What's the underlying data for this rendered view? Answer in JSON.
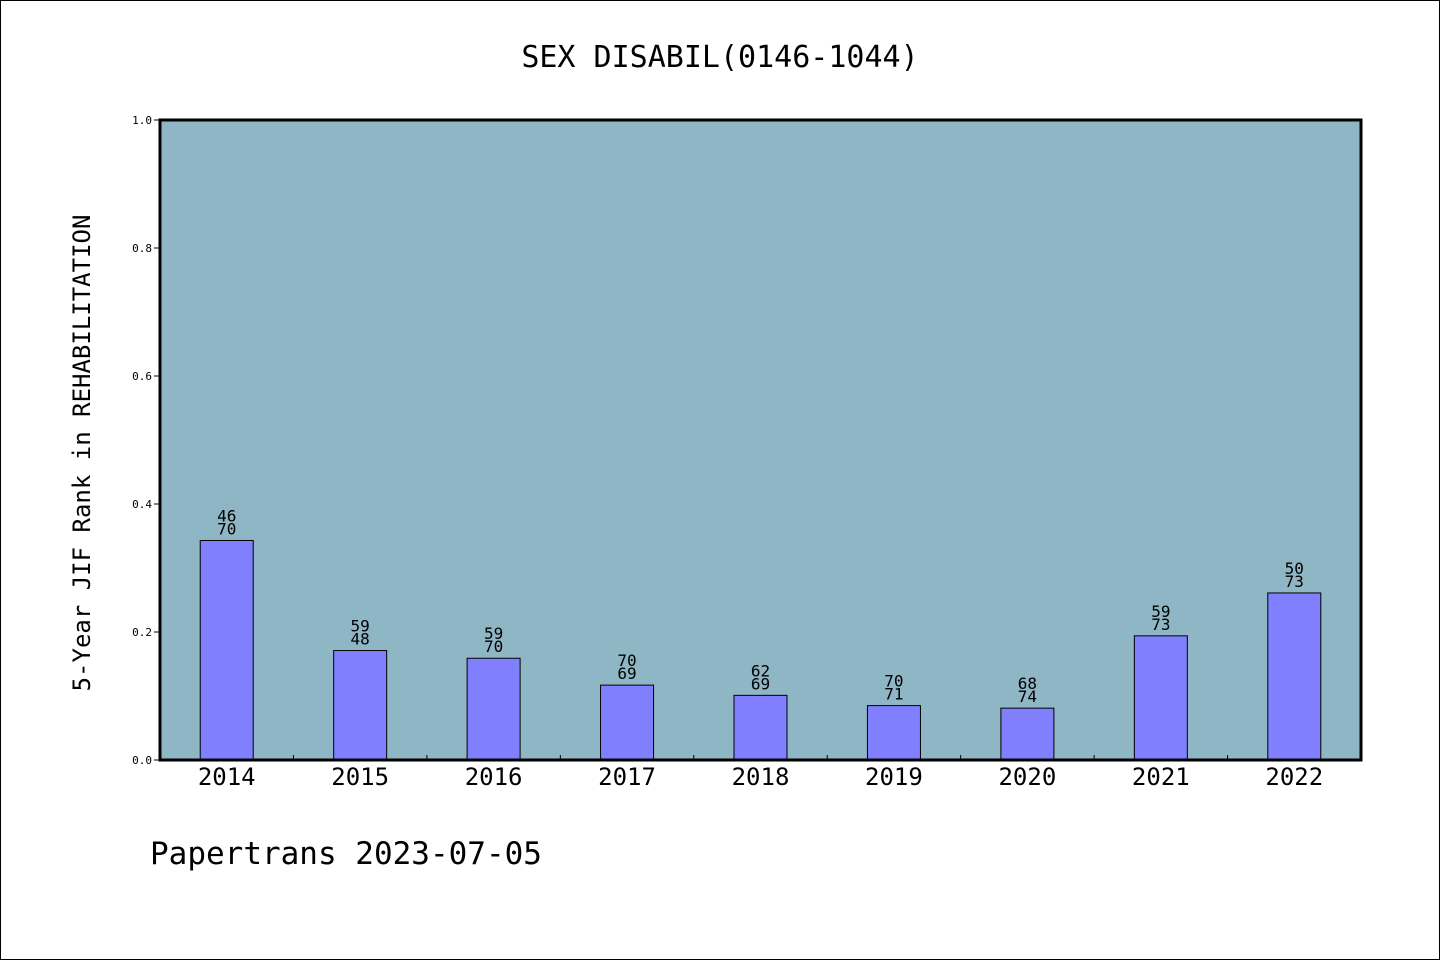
{
  "chart_data": {
    "type": "bar",
    "title": "SEX DISABIL(0146-1044)",
    "ylabel": "5-Year JIF Rank in REHABILITATION",
    "xlabel": "",
    "ylim": [
      0,
      1.0
    ],
    "yticks": [
      "0.0",
      "0.2",
      "0.4",
      "0.6",
      "0.8",
      "1.0"
    ],
    "categories": [
      "2014",
      "2015",
      "2016",
      "2017",
      "2018",
      "2019",
      "2020",
      "2021",
      "2022"
    ],
    "values": [
      0.343,
      0.171,
      0.159,
      0.117,
      0.101,
      0.085,
      0.081,
      0.194,
      0.261
    ],
    "bar_labels": [
      [
        "46",
        "70"
      ],
      [
        "59",
        "48"
      ],
      [
        "59",
        "70"
      ],
      [
        "70",
        "69"
      ],
      [
        "62",
        "69"
      ],
      [
        "70",
        "71"
      ],
      [
        "68",
        "74"
      ],
      [
        "59",
        "73"
      ],
      [
        "50",
        "73"
      ]
    ],
    "grid": false,
    "legend": "none",
    "colors": {
      "plot_bg": "#8fb6c4",
      "bar": "#8080ff"
    }
  },
  "footer": {
    "text": "Papertrans 2023-07-05"
  }
}
